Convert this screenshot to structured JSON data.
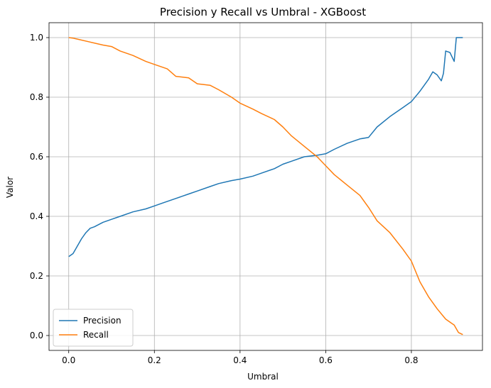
{
  "chart_data": {
    "type": "line",
    "title": "Precision y Recall vs Umbral - XGBoost",
    "xlabel": "Umbral",
    "ylabel": "Valor",
    "xlim": [
      -0.046,
      0.966
    ],
    "ylim": [
      -0.05,
      1.05
    ],
    "xticks": [
      0.0,
      0.2,
      0.4,
      0.6,
      0.8
    ],
    "xtick_labels": [
      "0.0",
      "0.2",
      "0.4",
      "0.6",
      "0.8"
    ],
    "yticks": [
      0.0,
      0.2,
      0.4,
      0.6,
      0.8,
      1.0
    ],
    "ytick_labels": [
      "0.0",
      "0.2",
      "0.4",
      "0.6",
      "0.8",
      "1.0"
    ],
    "grid": true,
    "legend_position": "lower-left",
    "series": [
      {
        "name": "Precision",
        "color": "#1f77b4",
        "x": [
          0.0,
          0.01,
          0.02,
          0.03,
          0.04,
          0.05,
          0.06,
          0.08,
          0.1,
          0.12,
          0.15,
          0.18,
          0.2,
          0.22,
          0.25,
          0.28,
          0.3,
          0.33,
          0.35,
          0.38,
          0.4,
          0.43,
          0.45,
          0.48,
          0.5,
          0.52,
          0.55,
          0.58,
          0.6,
          0.62,
          0.65,
          0.68,
          0.7,
          0.72,
          0.75,
          0.78,
          0.8,
          0.82,
          0.84,
          0.85,
          0.86,
          0.87,
          0.875,
          0.88,
          0.89,
          0.9,
          0.905,
          0.91,
          0.92
        ],
        "y": [
          0.265,
          0.275,
          0.3,
          0.325,
          0.345,
          0.36,
          0.365,
          0.38,
          0.39,
          0.4,
          0.415,
          0.425,
          0.435,
          0.445,
          0.46,
          0.475,
          0.485,
          0.5,
          0.51,
          0.52,
          0.525,
          0.535,
          0.545,
          0.56,
          0.575,
          0.585,
          0.6,
          0.605,
          0.61,
          0.625,
          0.645,
          0.66,
          0.665,
          0.7,
          0.735,
          0.765,
          0.785,
          0.82,
          0.86,
          0.885,
          0.875,
          0.855,
          0.88,
          0.955,
          0.95,
          0.92,
          1.0,
          1.0,
          1.0
        ]
      },
      {
        "name": "Recall",
        "color": "#ff7f0e",
        "x": [
          0.0,
          0.01,
          0.02,
          0.05,
          0.08,
          0.1,
          0.12,
          0.15,
          0.18,
          0.2,
          0.23,
          0.25,
          0.28,
          0.3,
          0.33,
          0.35,
          0.38,
          0.4,
          0.43,
          0.45,
          0.48,
          0.5,
          0.52,
          0.55,
          0.58,
          0.6,
          0.62,
          0.65,
          0.68,
          0.7,
          0.72,
          0.75,
          0.78,
          0.8,
          0.82,
          0.84,
          0.86,
          0.88,
          0.9,
          0.91,
          0.92
        ],
        "y": [
          1.0,
          0.998,
          0.995,
          0.985,
          0.975,
          0.97,
          0.955,
          0.94,
          0.92,
          0.91,
          0.895,
          0.87,
          0.865,
          0.845,
          0.84,
          0.825,
          0.8,
          0.78,
          0.76,
          0.745,
          0.725,
          0.7,
          0.67,
          0.635,
          0.6,
          0.57,
          0.54,
          0.505,
          0.47,
          0.43,
          0.385,
          0.345,
          0.29,
          0.25,
          0.18,
          0.13,
          0.09,
          0.055,
          0.035,
          0.01,
          0.003
        ]
      }
    ]
  }
}
